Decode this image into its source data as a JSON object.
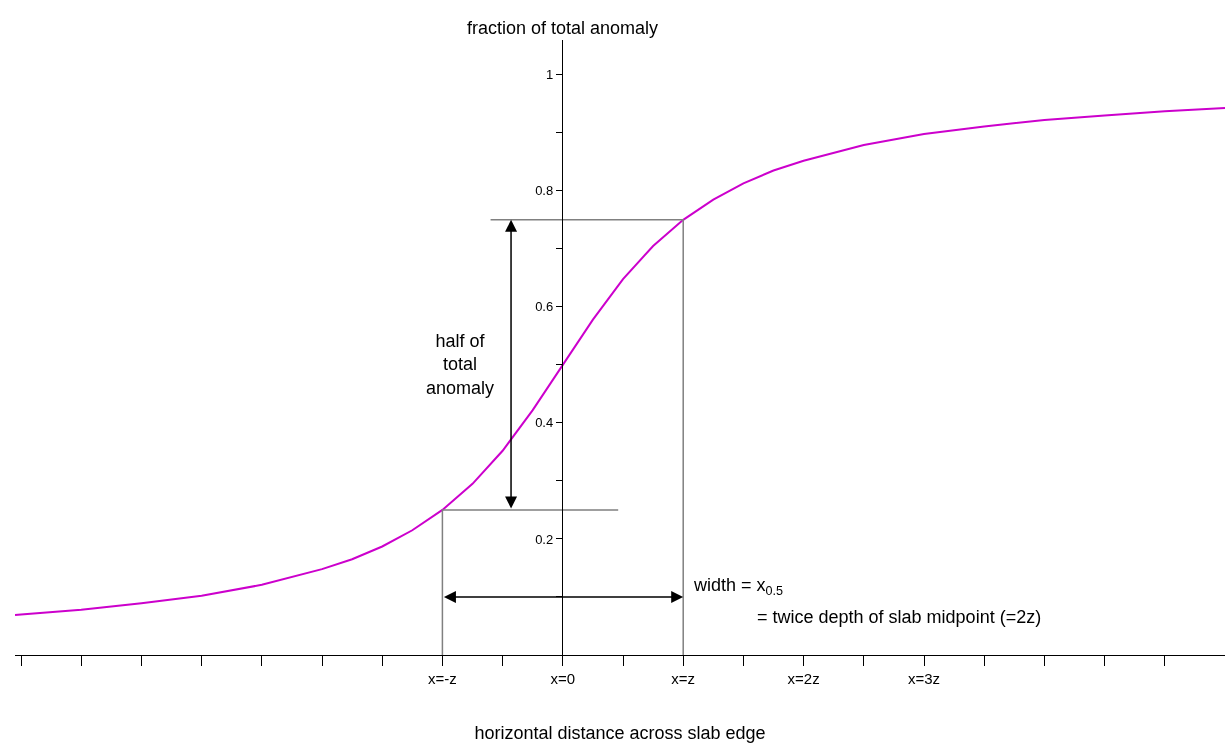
{
  "chart_data": {
    "type": "line",
    "xlabel": "horizontal distance across slab edge",
    "ylabel": "fraction of total anomaly",
    "xlim": [
      -4.55,
      5.5
    ],
    "ylim": [
      0,
      1.06
    ],
    "xticks": [
      {
        "value": -4.5,
        "label": null
      },
      {
        "value": -4,
        "label": null
      },
      {
        "value": -3.5,
        "label": null
      },
      {
        "value": -3,
        "label": null
      },
      {
        "value": -2.5,
        "label": null
      },
      {
        "value": -2,
        "label": null
      },
      {
        "value": -1.5,
        "label": null
      },
      {
        "value": -1,
        "label": "x=-z"
      },
      {
        "value": -0.5,
        "label": null
      },
      {
        "value": 0,
        "label": "x=0"
      },
      {
        "value": 0.5,
        "label": null
      },
      {
        "value": 1,
        "label": "x=z"
      },
      {
        "value": 1.5,
        "label": null
      },
      {
        "value": 2,
        "label": "x=2z"
      },
      {
        "value": 2.5,
        "label": null
      },
      {
        "value": 3,
        "label": "x=3z"
      },
      {
        "value": 3.5,
        "label": null
      },
      {
        "value": 4,
        "label": null
      },
      {
        "value": 4.5,
        "label": null
      },
      {
        "value": 5,
        "label": null
      }
    ],
    "yticks": [
      {
        "value": 0.1,
        "label": null
      },
      0.2,
      {
        "value": 0.3,
        "label": null
      },
      0.4,
      {
        "value": 0.5,
        "label": null
      },
      0.6,
      {
        "value": 0.7,
        "label": null
      },
      0.8,
      {
        "value": 0.9,
        "label": null
      },
      1
    ],
    "grid": false,
    "series": [
      {
        "color": "#cc00cc",
        "x": [
          -4.55,
          -4.5,
          -4,
          -3.5,
          -3,
          -2.5,
          -2,
          -1.75,
          -1.5,
          -1.25,
          -1,
          -0.75,
          -0.5,
          -0.25,
          0,
          0.25,
          0.5,
          0.75,
          1,
          1.25,
          1.5,
          1.75,
          2,
          2.5,
          3,
          3.5,
          4,
          4.5,
          5,
          5.5
        ],
        "values": [
          0.069,
          0.07,
          0.078,
          0.089,
          0.102,
          0.121,
          0.148,
          0.165,
          0.187,
          0.215,
          0.25,
          0.295,
          0.352,
          0.422,
          0.5,
          0.578,
          0.648,
          0.705,
          0.75,
          0.785,
          0.813,
          0.835,
          0.852,
          0.879,
          0.898,
          0.911,
          0.922,
          0.93,
          0.937,
          0.943
        ]
      },
      {
        "color": "#808080",
        "x": [
          -0.6,
          1,
          1
        ],
        "values": [
          0.75,
          0.75,
          0
        ]
      },
      {
        "color": "#808080",
        "x": [
          0.46,
          -1,
          -1
        ],
        "values": [
          0.25,
          0.25,
          0
        ]
      }
    ],
    "annotations": [
      "half of\ntotal\nanomaly",
      {
        "text": "width = x$_{0.5}$",
        "x": 1,
        "y": 0.1
      },
      "= twice depth of slab midpoint (=2z)"
    ]
  }
}
